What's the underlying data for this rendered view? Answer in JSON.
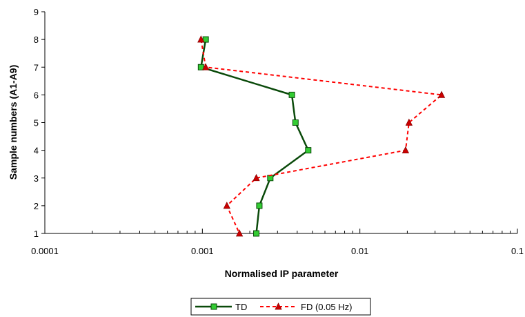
{
  "chart_data": {
    "type": "line",
    "xlabel": "Normalised IP parameter",
    "ylabel": "Sample numbers (A1-A9)",
    "xscale": "log",
    "xlim": [
      0.0001,
      0.1
    ],
    "ylim": [
      1,
      9
    ],
    "x_ticks": [
      "0.0001",
      "0.001",
      "0.01",
      "0.1"
    ],
    "y_ticks": [
      "1",
      "2",
      "3",
      "4",
      "5",
      "6",
      "7",
      "8",
      "9"
    ],
    "grid": false,
    "legend_position": "bottom",
    "series": [
      {
        "name": "TD",
        "color": "#0a4a0a",
        "marker": "square",
        "marker_color": "#33cc33",
        "line_style": "solid",
        "points": [
          {
            "x": 0.00105,
            "y": 8
          },
          {
            "x": 0.00098,
            "y": 7
          },
          {
            "x": 0.0037,
            "y": 6
          },
          {
            "x": 0.0039,
            "y": 5
          },
          {
            "x": 0.0047,
            "y": 4
          },
          {
            "x": 0.0027,
            "y": 3
          },
          {
            "x": 0.0023,
            "y": 2
          },
          {
            "x": 0.0022,
            "y": 1
          }
        ]
      },
      {
        "name": "FD (0.05 Hz)",
        "color": "#ff0000",
        "marker": "triangle",
        "marker_color": "#cc0000",
        "line_style": "dashed",
        "points": [
          {
            "x": 0.00098,
            "y": 8
          },
          {
            "x": 0.00105,
            "y": 7
          },
          {
            "x": 0.033,
            "y": 6
          },
          {
            "x": 0.0205,
            "y": 5
          },
          {
            "x": 0.0195,
            "y": 4
          },
          {
            "x": 0.0022,
            "y": 3
          },
          {
            "x": 0.00143,
            "y": 2
          },
          {
            "x": 0.00172,
            "y": 1
          }
        ]
      }
    ]
  }
}
